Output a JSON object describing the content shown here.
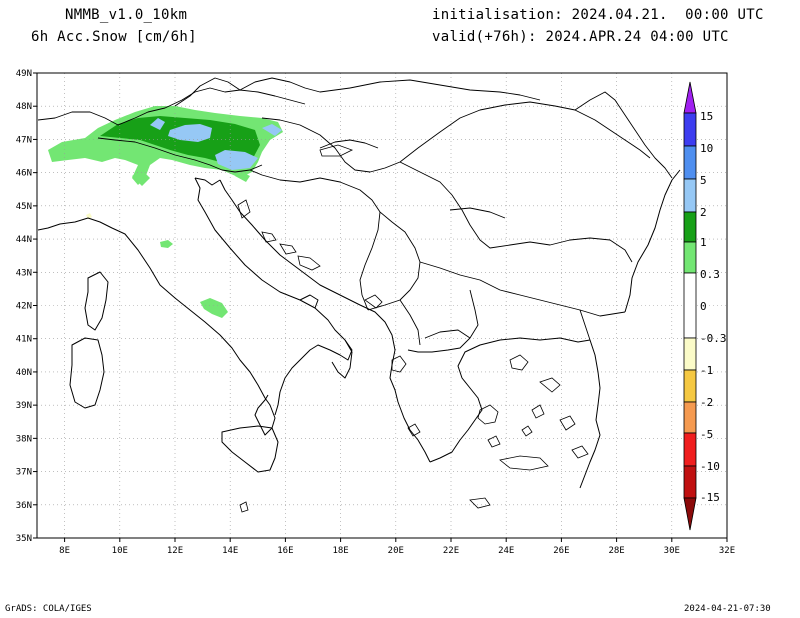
{
  "header": {
    "model": "NMMB_v1.0_10km",
    "variable": "6h Acc.Snow [cm/6h]",
    "init": "initialisation: 2024.04.21.  00:00 UTC",
    "valid": "valid(+76h): 2024.APR.24 04:00 UTC"
  },
  "map": {
    "lon_range": [
      7,
      32
    ],
    "lat_range": [
      35,
      49
    ],
    "lon_ticks": [
      "8E",
      "10E",
      "12E",
      "14E",
      "16E",
      "18E",
      "20E",
      "22E",
      "24E",
      "26E",
      "28E",
      "30E",
      "32E"
    ],
    "lat_ticks": [
      "35N",
      "36N",
      "37N",
      "38N",
      "39N",
      "40N",
      "41N",
      "42N",
      "43N",
      "44N",
      "45N",
      "46N",
      "47N",
      "48N",
      "49N"
    ],
    "grid": true
  },
  "legend": {
    "labels": [
      "15",
      "10",
      "5",
      "2",
      "1",
      "0.3",
      "0",
      "-0.3",
      "-1",
      "-2",
      "-5",
      "-10",
      "-15"
    ],
    "colors": {
      "top_arrow": "#a020f0",
      "c15": "#3d3df0",
      "c10": "#4f8ff0",
      "c5": "#96c8f5",
      "c2": "#17a017",
      "c1": "#73e673",
      "neg03": "#fbfbc8",
      "neg1": "#f5c842",
      "neg2": "#f59a50",
      "neg5": "#f01e1e",
      "neg10": "#c01010",
      "neg15": "#8b0a0a"
    }
  },
  "footer": {
    "left": "GrADS: COLA/IGES",
    "right": "2024-04-21-07:30"
  }
}
